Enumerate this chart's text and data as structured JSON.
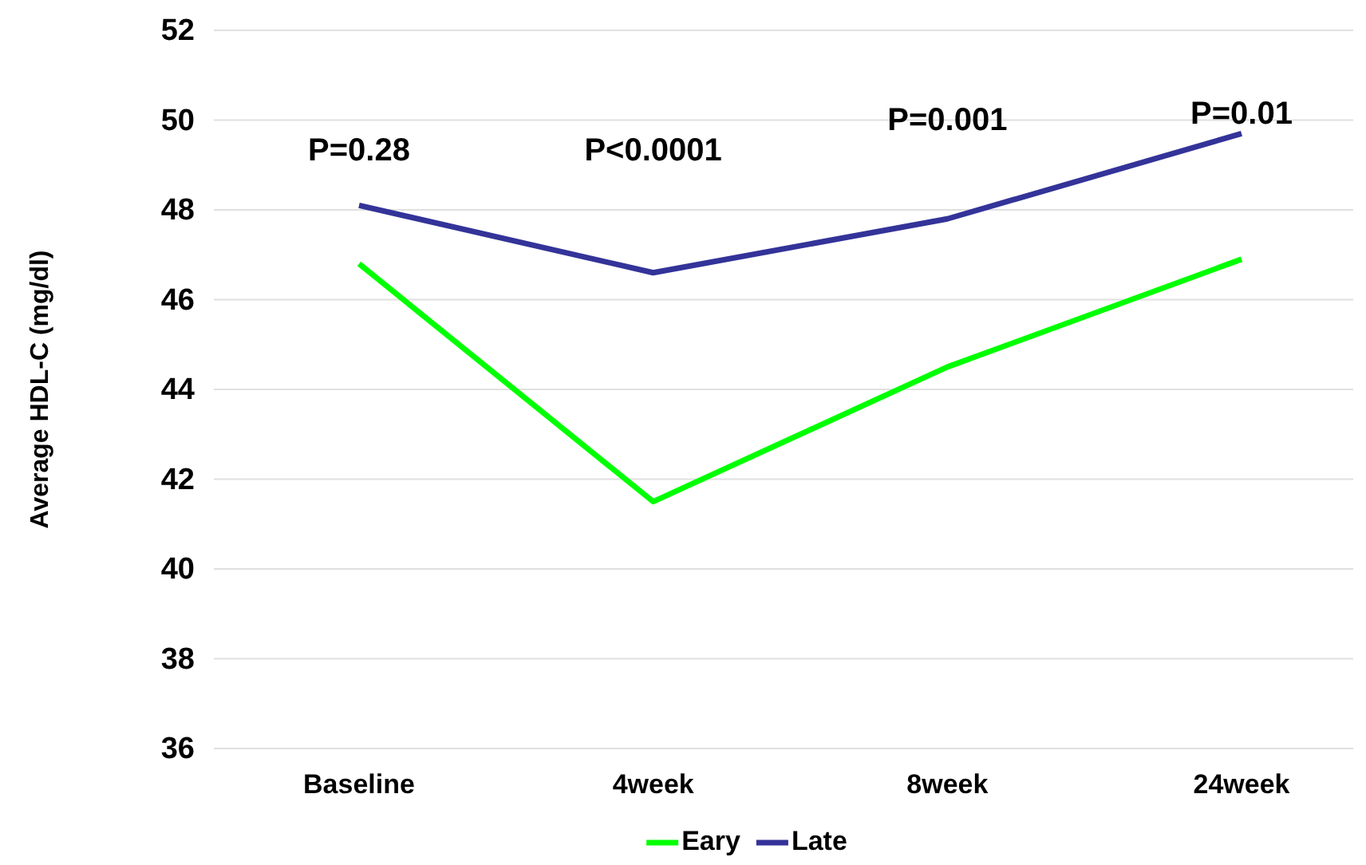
{
  "chart_data": {
    "type": "line",
    "ylabel": "Average HDL-C (mg/dl)",
    "categories": [
      "Baseline",
      "4week",
      "8week",
      "24week"
    ],
    "series": [
      {
        "name": "Eary",
        "color": "#00ff00",
        "values": [
          46.8,
          41.5,
          44.5,
          46.9
        ]
      },
      {
        "name": "Late",
        "color": "#333399",
        "values": [
          48.1,
          46.6,
          47.8,
          49.7
        ]
      }
    ],
    "ylim": [
      36,
      52
    ],
    "yticks": [
      36,
      38,
      40,
      42,
      44,
      46,
      48,
      50,
      52
    ],
    "grid": "y",
    "legend": "bottom",
    "marker": "none",
    "line_style": "solid",
    "annotations": [
      "P=0.28",
      "P<0.0001",
      "P=0.001",
      "P=0.01"
    ]
  }
}
